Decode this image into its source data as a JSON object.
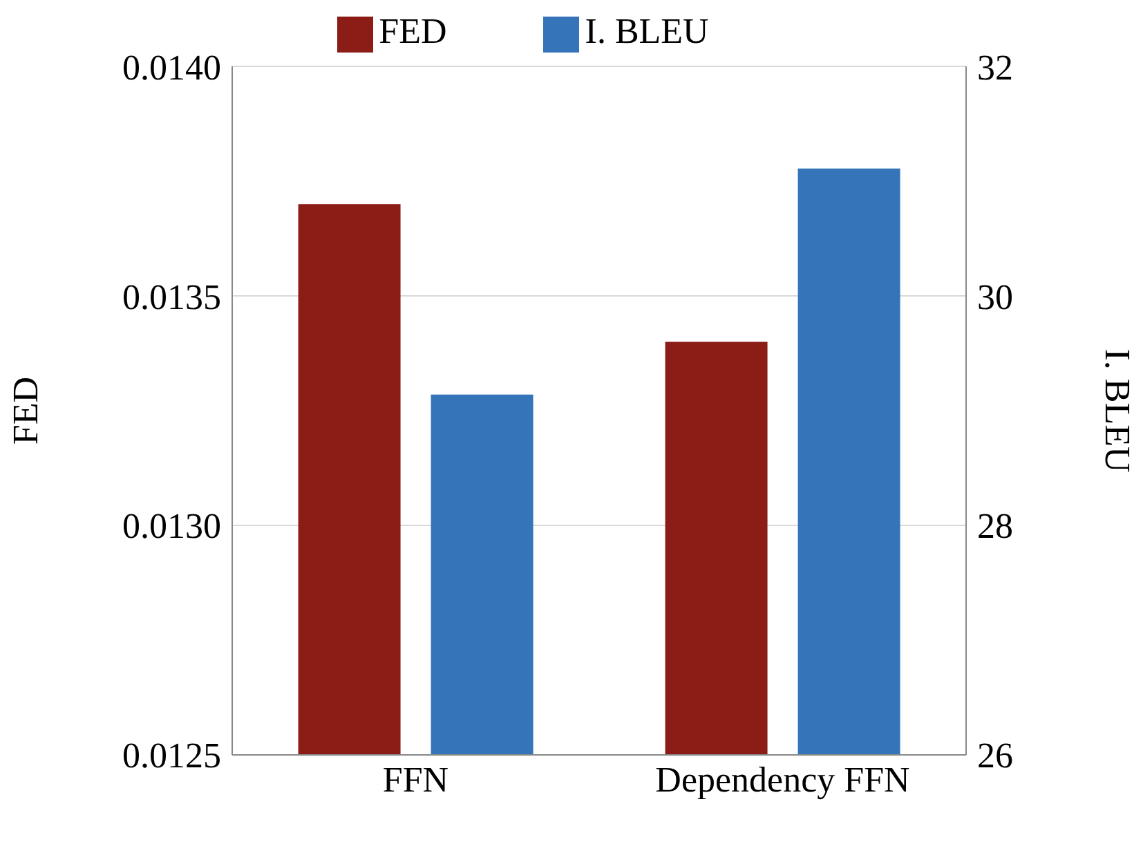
{
  "chart_data": {
    "type": "bar",
    "categories": [
      "FFN",
      "Dependency FFN"
    ],
    "series": [
      {
        "name": "FED",
        "color": "#8b1c16",
        "values": [
          0.0137,
          0.0134
        ]
      },
      {
        "name": "I. BLEU",
        "color": "#3574b9",
        "values": [
          29.14,
          31.11
        ],
        "axis": "y2"
      }
    ],
    "ylabel": "FED",
    "y2label": "I. BLEU",
    "ylim": [
      0.0125,
      0.014
    ],
    "yticks": [
      {
        "value": 0.0125,
        "label": "0.0125"
      },
      {
        "value": 0.013,
        "label": "0.0130"
      },
      {
        "value": 0.0135,
        "label": "0.0135"
      },
      {
        "value": 0.014,
        "label": "0.0140"
      }
    ],
    "y2lim": [
      26,
      32
    ],
    "y2ticks": [
      26,
      28,
      30,
      32
    ],
    "grid": "y",
    "legend": "top"
  }
}
